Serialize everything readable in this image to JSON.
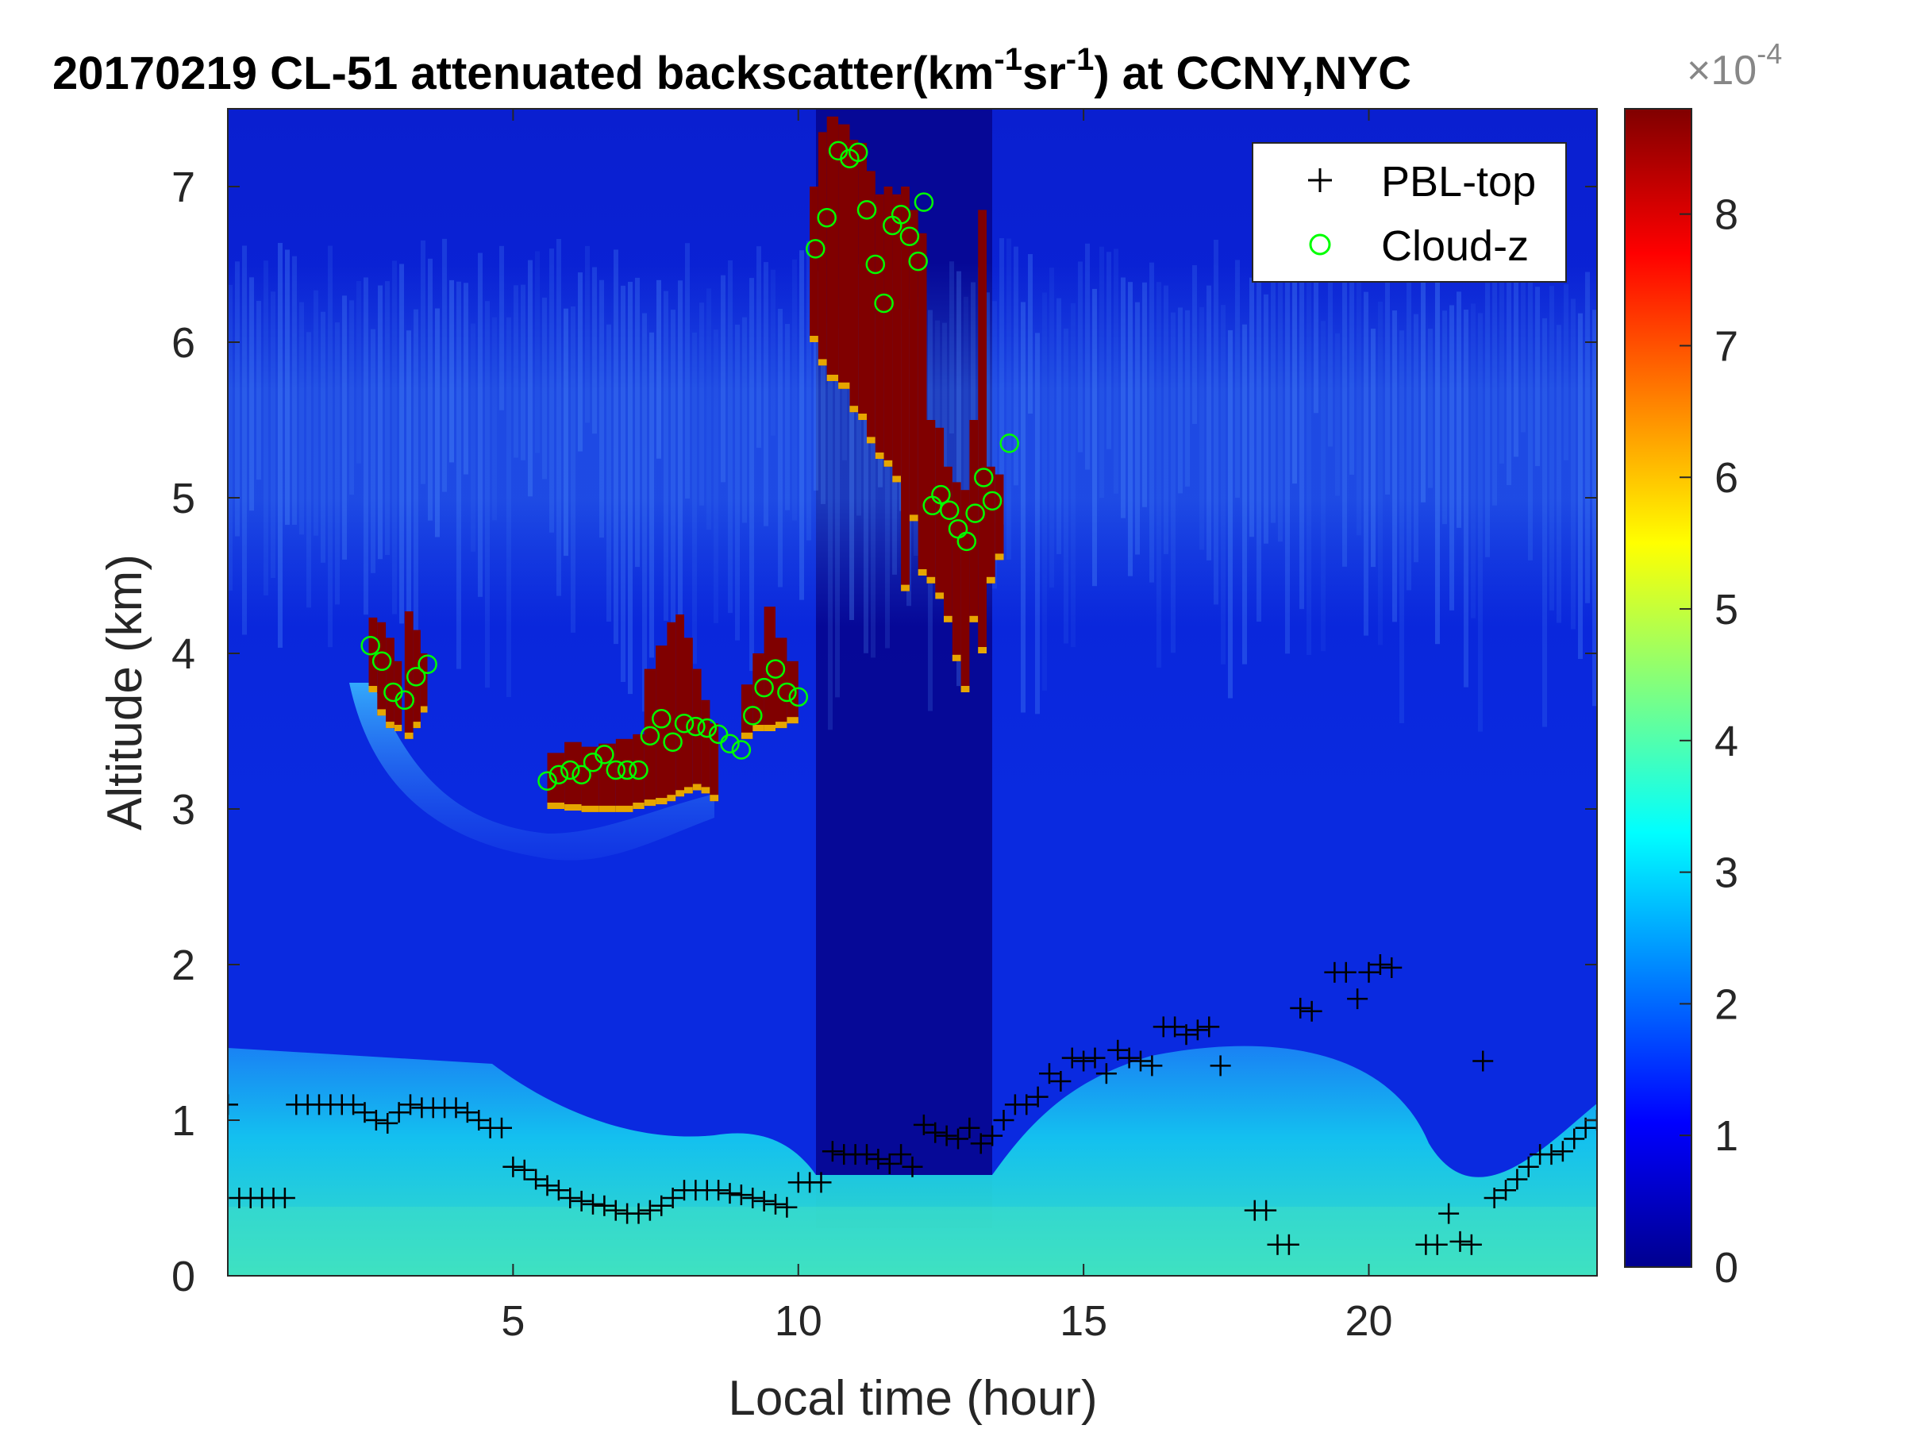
{
  "chart_data": {
    "type": "heatmap",
    "title": "20170219  CL-51 attenuated backscatter(km",
    "title_parts": {
      "main": "20170219  CL-51 attenuated backscatter(km",
      "sup1": "-1",
      "mid": "sr",
      "sup2": "-1",
      "tail": ") at CCNY,NYC"
    },
    "xlabel": "Local time (hour)",
    "ylabel": "Altitude (km)",
    "xlim": [
      0,
      24
    ],
    "ylim": [
      0,
      7.5
    ],
    "xticks": [
      5,
      10,
      15,
      20
    ],
    "yticks": [
      0,
      1,
      2,
      3,
      4,
      5,
      6,
      7
    ],
    "colorbar": {
      "colormap": "jet",
      "range": [
        0,
        0.00088
      ],
      "ticks": [
        0,
        1,
        2,
        3,
        4,
        5,
        6,
        7,
        8
      ],
      "exponent_label": "×10",
      "exponent": "-4"
    },
    "legend": {
      "position": "top-right",
      "entries": [
        {
          "label": "PBL-top",
          "marker": "+",
          "color": "#000000"
        },
        {
          "label": "Cloud-z",
          "marker": "o",
          "color": "#00ff00"
        }
      ]
    },
    "pbl_top": [
      [
        0,
        1.1
      ],
      [
        0.2,
        0.5
      ],
      [
        0.4,
        0.5
      ],
      [
        0.6,
        0.5
      ],
      [
        0.8,
        0.5
      ],
      [
        1,
        0.5
      ],
      [
        1.2,
        1.1
      ],
      [
        1.4,
        1.1
      ],
      [
        1.6,
        1.1
      ],
      [
        1.8,
        1.1
      ],
      [
        2,
        1.1
      ],
      [
        2.2,
        1.1
      ],
      [
        2.4,
        1.05
      ],
      [
        2.6,
        1.0
      ],
      [
        2.8,
        0.98
      ],
      [
        3,
        1.05
      ],
      [
        3.2,
        1.1
      ],
      [
        3.4,
        1.08
      ],
      [
        3.6,
        1.08
      ],
      [
        3.8,
        1.08
      ],
      [
        4,
        1.08
      ],
      [
        4.2,
        1.05
      ],
      [
        4.4,
        1.0
      ],
      [
        4.6,
        0.95
      ],
      [
        4.8,
        0.95
      ],
      [
        5,
        0.7
      ],
      [
        5.2,
        0.68
      ],
      [
        5.4,
        0.62
      ],
      [
        5.6,
        0.58
      ],
      [
        5.8,
        0.55
      ],
      [
        6,
        0.5
      ],
      [
        6.2,
        0.48
      ],
      [
        6.4,
        0.46
      ],
      [
        6.6,
        0.45
      ],
      [
        6.8,
        0.42
      ],
      [
        7,
        0.4
      ],
      [
        7.2,
        0.4
      ],
      [
        7.4,
        0.42
      ],
      [
        7.6,
        0.45
      ],
      [
        7.8,
        0.5
      ],
      [
        8,
        0.55
      ],
      [
        8.2,
        0.55
      ],
      [
        8.4,
        0.55
      ],
      [
        8.6,
        0.55
      ],
      [
        8.8,
        0.53
      ],
      [
        9,
        0.52
      ],
      [
        9.2,
        0.5
      ],
      [
        9.4,
        0.48
      ],
      [
        9.6,
        0.46
      ],
      [
        9.8,
        0.44
      ],
      [
        10,
        0.6
      ],
      [
        10.2,
        0.6
      ],
      [
        10.4,
        0.6
      ],
      [
        10.6,
        0.8
      ],
      [
        10.8,
        0.78
      ],
      [
        11,
        0.78
      ],
      [
        11.2,
        0.78
      ],
      [
        11.4,
        0.75
      ],
      [
        11.6,
        0.72
      ],
      [
        11.8,
        0.78
      ],
      [
        12,
        0.7
      ],
      [
        12.2,
        0.97
      ],
      [
        12.4,
        0.92
      ],
      [
        12.6,
        0.9
      ],
      [
        12.8,
        0.88
      ],
      [
        13,
        0.95
      ],
      [
        13.2,
        0.85
      ],
      [
        13.4,
        0.9
      ],
      [
        13.6,
        1.0
      ],
      [
        13.8,
        1.1
      ],
      [
        14,
        1.1
      ],
      [
        14.2,
        1.15
      ],
      [
        14.4,
        1.3
      ],
      [
        14.6,
        1.25
      ],
      [
        14.8,
        1.4
      ],
      [
        15,
        1.38
      ],
      [
        15.2,
        1.4
      ],
      [
        15.4,
        1.3
      ],
      [
        15.6,
        1.45
      ],
      [
        15.8,
        1.4
      ],
      [
        16,
        1.38
      ],
      [
        16.2,
        1.35
      ],
      [
        16.4,
        1.6
      ],
      [
        16.6,
        1.6
      ],
      [
        16.8,
        1.55
      ],
      [
        17,
        1.58
      ],
      [
        17.2,
        1.6
      ],
      [
        17.4,
        1.35
      ],
      [
        18,
        0.42
      ],
      [
        18.2,
        0.42
      ],
      [
        18.4,
        0.2
      ],
      [
        18.6,
        0.2
      ],
      [
        18.8,
        1.72
      ],
      [
        19,
        1.7
      ],
      [
        19.4,
        1.95
      ],
      [
        19.6,
        1.95
      ],
      [
        19.8,
        1.78
      ],
      [
        20,
        1.95
      ],
      [
        20.2,
        2.0
      ],
      [
        20.4,
        1.98
      ],
      [
        21,
        0.2
      ],
      [
        21.2,
        0.2
      ],
      [
        21.4,
        0.4
      ],
      [
        21.6,
        0.22
      ],
      [
        21.8,
        0.2
      ],
      [
        22,
        1.38
      ],
      [
        22.2,
        0.5
      ],
      [
        22.4,
        0.55
      ],
      [
        22.6,
        0.62
      ],
      [
        22.8,
        0.7
      ],
      [
        23,
        0.78
      ],
      [
        23.2,
        0.78
      ],
      [
        23.4,
        0.8
      ],
      [
        23.6,
        0.88
      ],
      [
        23.8,
        0.95
      ],
      [
        24,
        1.0
      ]
    ],
    "cloud_z": [
      [
        2.5,
        4.05
      ],
      [
        2.7,
        3.95
      ],
      [
        2.9,
        3.75
      ],
      [
        3.1,
        3.7
      ],
      [
        3.3,
        3.85
      ],
      [
        3.5,
        3.93
      ],
      [
        5.6,
        3.18
      ],
      [
        5.8,
        3.22
      ],
      [
        6.0,
        3.25
      ],
      [
        6.2,
        3.22
      ],
      [
        6.4,
        3.3
      ],
      [
        6.6,
        3.35
      ],
      [
        6.8,
        3.25
      ],
      [
        7.0,
        3.25
      ],
      [
        7.2,
        3.25
      ],
      [
        7.4,
        3.47
      ],
      [
        7.6,
        3.58
      ],
      [
        7.8,
        3.43
      ],
      [
        8.0,
        3.55
      ],
      [
        8.2,
        3.53
      ],
      [
        8.4,
        3.52
      ],
      [
        8.6,
        3.48
      ],
      [
        8.8,
        3.42
      ],
      [
        9.0,
        3.38
      ],
      [
        9.2,
        3.6
      ],
      [
        9.4,
        3.78
      ],
      [
        9.6,
        3.9
      ],
      [
        9.8,
        3.75
      ],
      [
        10.0,
        3.72
      ],
      [
        10.3,
        6.6
      ],
      [
        10.5,
        6.8
      ],
      [
        10.7,
        7.23
      ],
      [
        10.9,
        7.18
      ],
      [
        11.05,
        7.22
      ],
      [
        11.2,
        6.85
      ],
      [
        11.35,
        6.5
      ],
      [
        11.5,
        6.25
      ],
      [
        11.65,
        6.75
      ],
      [
        11.8,
        6.82
      ],
      [
        11.95,
        6.68
      ],
      [
        12.1,
        6.52
      ],
      [
        12.2,
        6.9
      ],
      [
        12.35,
        4.95
      ],
      [
        12.5,
        5.02
      ],
      [
        12.65,
        4.92
      ],
      [
        12.8,
        4.8
      ],
      [
        12.95,
        4.72
      ],
      [
        13.1,
        4.9
      ],
      [
        13.25,
        5.13
      ],
      [
        13.4,
        4.98
      ],
      [
        13.7,
        5.35
      ]
    ],
    "clouds": [
      [
        2.47,
        2.62,
        3.75,
        4.23
      ],
      [
        2.62,
        2.77,
        3.6,
        4.2
      ],
      [
        2.77,
        2.92,
        3.52,
        4.1
      ],
      [
        2.92,
        3.05,
        3.5,
        3.95
      ],
      [
        3.1,
        3.25,
        3.45,
        4.27
      ],
      [
        3.25,
        3.38,
        3.52,
        4.15
      ],
      [
        3.38,
        3.5,
        3.62,
        4.0
      ],
      [
        5.6,
        5.9,
        3.0,
        3.36
      ],
      [
        5.9,
        6.2,
        2.99,
        3.43
      ],
      [
        6.2,
        6.5,
        2.98,
        3.4
      ],
      [
        6.5,
        6.8,
        2.98,
        3.42
      ],
      [
        6.8,
        7.1,
        2.98,
        3.45
      ],
      [
        7.1,
        7.3,
        3.0,
        3.48
      ],
      [
        7.3,
        7.5,
        3.02,
        3.9
      ],
      [
        7.5,
        7.7,
        3.03,
        4.05
      ],
      [
        7.7,
        7.85,
        3.05,
        4.2
      ],
      [
        7.85,
        8.0,
        3.08,
        4.25
      ],
      [
        8.0,
        8.15,
        3.1,
        4.1
      ],
      [
        8.15,
        8.3,
        3.12,
        3.9
      ],
      [
        8.3,
        8.45,
        3.1,
        3.7
      ],
      [
        8.45,
        8.6,
        3.05,
        3.55
      ],
      [
        9.0,
        9.2,
        3.45,
        3.8
      ],
      [
        9.2,
        9.4,
        3.5,
        4.0
      ],
      [
        9.4,
        9.6,
        3.5,
        4.3
      ],
      [
        9.6,
        9.8,
        3.52,
        4.1
      ],
      [
        9.8,
        10.0,
        3.55,
        3.95
      ],
      [
        10.2,
        10.35,
        6.0,
        7.0
      ],
      [
        10.35,
        10.5,
        5.85,
        7.35
      ],
      [
        10.5,
        10.7,
        5.75,
        7.45
      ],
      [
        10.7,
        10.9,
        5.7,
        7.4
      ],
      [
        10.9,
        11.05,
        5.55,
        7.3
      ],
      [
        11.05,
        11.2,
        5.5,
        7.28
      ],
      [
        11.2,
        11.35,
        5.35,
        7.1
      ],
      [
        11.35,
        11.5,
        5.25,
        6.95
      ],
      [
        11.5,
        11.65,
        5.2,
        7.0
      ],
      [
        11.65,
        11.8,
        5.1,
        6.95
      ],
      [
        11.8,
        11.95,
        4.4,
        7.0
      ],
      [
        11.95,
        12.1,
        4.85,
        6.85
      ],
      [
        12.1,
        12.25,
        4.5,
        6.7
      ],
      [
        12.25,
        12.4,
        4.45,
        5.5
      ],
      [
        12.4,
        12.55,
        4.35,
        5.45
      ],
      [
        12.55,
        12.7,
        4.2,
        5.2
      ],
      [
        12.7,
        12.85,
        3.95,
        5.1
      ],
      [
        12.85,
        13.0,
        3.75,
        5.05
      ],
      [
        13.0,
        13.15,
        4.2,
        5.5
      ],
      [
        13.15,
        13.3,
        4.0,
        6.85
      ],
      [
        13.3,
        13.45,
        4.45,
        5.2
      ],
      [
        13.45,
        13.6,
        4.6,
        5.15
      ]
    ]
  }
}
